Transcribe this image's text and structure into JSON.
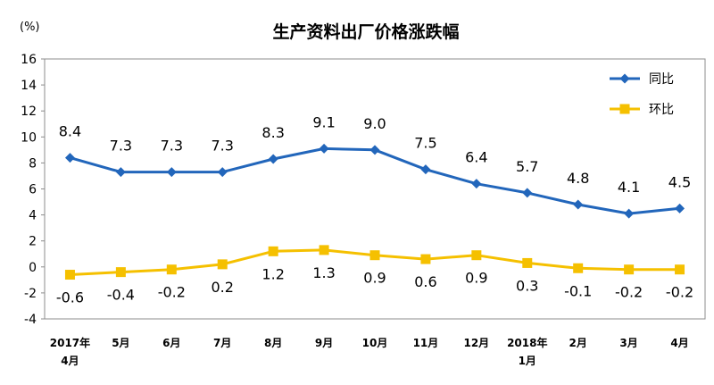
{
  "chart_data": {
    "type": "line",
    "title": "生产资料出厂价格涨跌幅",
    "unit_label": "(%)",
    "ylim": [
      -4,
      16
    ],
    "y_ticks": [
      -4,
      -2,
      0,
      2,
      4,
      6,
      8,
      10,
      12,
      14,
      16
    ],
    "grid": false,
    "legend_position": "top-right",
    "categories": [
      [
        "2017年",
        "4月"
      ],
      [
        "5月"
      ],
      [
        "6月"
      ],
      [
        "7月"
      ],
      [
        "8月"
      ],
      [
        "9月"
      ],
      [
        "10月"
      ],
      [
        "11月"
      ],
      [
        "12月"
      ],
      [
        "2018年",
        "1月"
      ],
      [
        "2月"
      ],
      [
        "3月"
      ],
      [
        "4月"
      ]
    ],
    "series": [
      {
        "name": "同比",
        "color": "#2266bb",
        "marker": "diamond",
        "values": [
          8.4,
          7.3,
          7.3,
          7.3,
          8.3,
          9.1,
          9.0,
          7.5,
          6.4,
          5.7,
          4.8,
          4.1,
          4.5
        ],
        "labels": [
          "8.4",
          "7.3",
          "7.3",
          "7.3",
          "8.3",
          "9.1",
          "9.0",
          "7.5",
          "6.4",
          "5.7",
          "4.8",
          "4.1",
          "4.5"
        ]
      },
      {
        "name": "环比",
        "color": "#f5c000",
        "marker": "square",
        "values": [
          -0.6,
          -0.4,
          -0.2,
          0.2,
          1.2,
          1.3,
          0.9,
          0.6,
          0.9,
          0.3,
          -0.1,
          -0.2,
          -0.2
        ],
        "labels": [
          "-0.6",
          "-0.4",
          "-0.2",
          "0.2",
          "1.2",
          "1.3",
          "0.9",
          "0.6",
          "0.9",
          "0.3",
          "-0.1",
          "-0.2",
          "-0.2"
        ]
      }
    ]
  }
}
